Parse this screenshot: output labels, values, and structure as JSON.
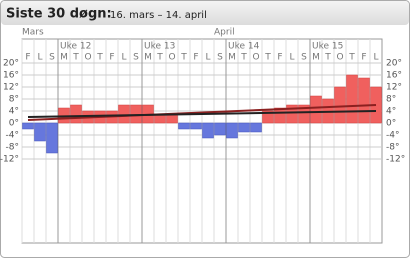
{
  "header": {
    "title": "Siste 30 døgn:",
    "subtitle": "16. mars – 14. april"
  },
  "chart_data": {
    "type": "bar",
    "categories": [
      "F",
      "L",
      "S",
      "M",
      "T",
      "O",
      "T",
      "F",
      "L",
      "S",
      "M",
      "T",
      "O",
      "T",
      "F",
      "L",
      "S",
      "M",
      "T",
      "O",
      "T",
      "F",
      "L",
      "S",
      "M",
      "T",
      "O",
      "T",
      "F",
      "L"
    ],
    "months": [
      {
        "label": "Mars",
        "index": 0
      },
      {
        "label": "April",
        "index": 16
      }
    ],
    "weeks": [
      {
        "label": "Uke 12",
        "index": 3
      },
      {
        "label": "Uke 13",
        "index": 10
      },
      {
        "label": "Uke 14",
        "index": 17
      },
      {
        "label": "Uke 15",
        "index": 24
      }
    ],
    "values": [
      -2,
      -6,
      -10,
      5,
      6,
      4,
      4,
      4,
      6,
      6,
      6,
      3,
      3,
      -2,
      -2,
      -5,
      -4,
      -5,
      -3,
      -3,
      4,
      5,
      6,
      6,
      9,
      8,
      12,
      16,
      15,
      12
    ],
    "positive_color": "#f0605e",
    "negative_color": "#6677dd",
    "lines": [
      {
        "color": "#8b2020",
        "x": [
          0,
          29
        ],
        "values": [
          1,
          6
        ]
      },
      {
        "color": "#222222",
        "x": [
          0,
          29
        ],
        "values": [
          2,
          4
        ]
      }
    ],
    "ylim": [
      -40,
      28
    ],
    "yticks": [
      {
        "value": 20,
        "label": "20°"
      },
      {
        "value": 16,
        "label": "16°"
      },
      {
        "value": 12,
        "label": "12°"
      },
      {
        "value": 8,
        "label": "8°"
      },
      {
        "value": 4,
        "label": "4°"
      },
      {
        "value": 0,
        "label": "0°"
      },
      {
        "value": -4,
        "label": "-4°"
      },
      {
        "value": -8,
        "label": "-8°"
      },
      {
        "value": -12,
        "label": "-12°"
      }
    ],
    "grid": true
  }
}
